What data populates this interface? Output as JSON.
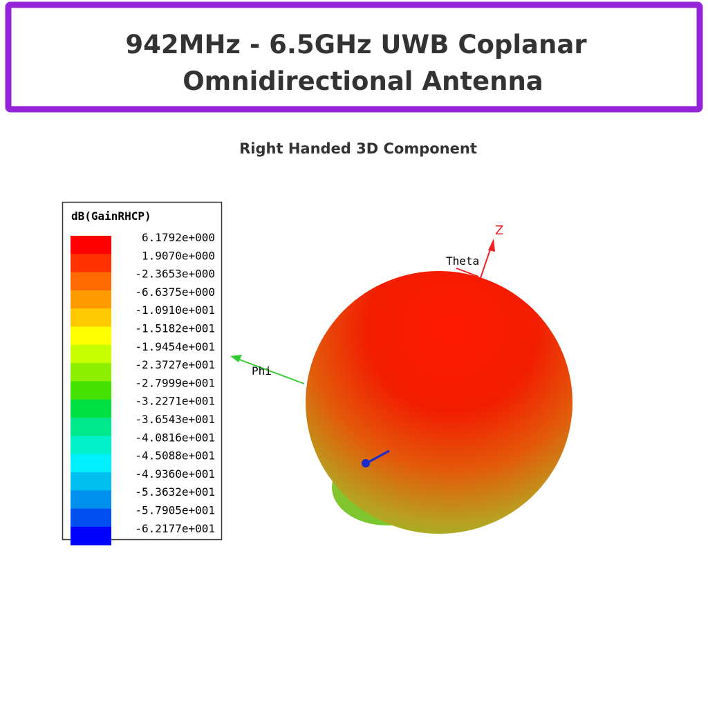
{
  "header": {
    "title": [
      "942MHz - 6.5GHz UWB Coplanar",
      "Omnidirectional Antenna"
    ]
  },
  "subtitle": "Right Handed 3D Component",
  "legend": {
    "title": "dB(GainRHCP)",
    "labels": [
      "6.1792e+000",
      "1.9070e+000",
      "-2.3653e+000",
      "-6.6375e+000",
      "-1.0910e+001",
      "-1.5182e+001",
      "-1.9454e+001",
      "-2.3727e+001",
      "-2.7999e+001",
      "-3.2271e+001",
      "-3.6543e+001",
      "-4.0816e+001",
      "-4.5088e+001",
      "-4.9360e+001",
      "-5.3632e+001",
      "-5.7905e+001",
      "-6.2177e+001"
    ]
  },
  "axes": {
    "z": "Z",
    "theta": "Theta",
    "phi": "Phi"
  }
}
